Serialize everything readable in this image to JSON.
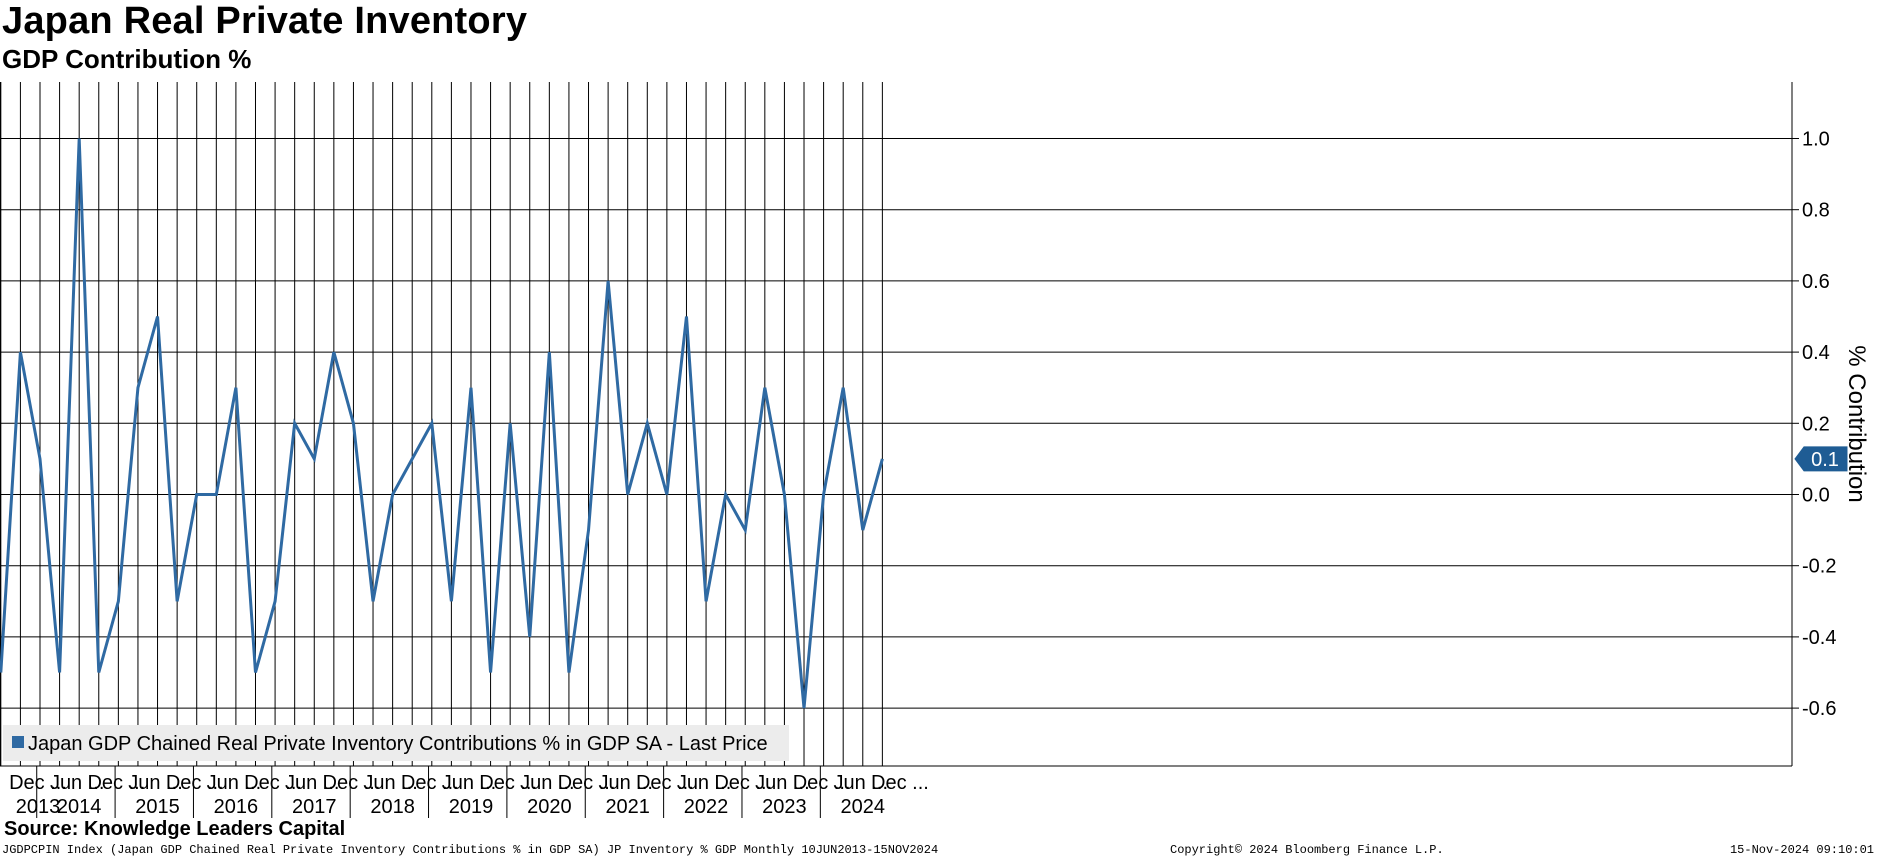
{
  "chart_data": {
    "type": "line",
    "title": "Japan Real Private Inventory",
    "subtitle": "GDP Contribution %",
    "ylabel": "% Contribution",
    "ylim": [
      -0.76,
      1.15
    ],
    "yticks": [
      "1.0",
      "0.8",
      "0.6",
      "0.4",
      "0.2",
      "0.0",
      "-0.2",
      "-0.4",
      "-0.6"
    ],
    "ytick_values": [
      1.0,
      0.8,
      0.6,
      0.4,
      0.2,
      0.0,
      -0.2,
      -0.4,
      -0.6
    ],
    "x_range": [
      "2013-04",
      "2024-10"
    ],
    "grid": true,
    "legend_position": "bottom-left",
    "series": [
      {
        "name": "Japan GDP Chained Real Private Inventory Contributions % in GDP SA - Last Price",
        "color": "#2f6aa3",
        "x": [
          "2013-06",
          "2013-09",
          "2013-12",
          "2014-03",
          "2014-06",
          "2014-09",
          "2014-12",
          "2015-03",
          "2015-06",
          "2015-09",
          "2015-12",
          "2016-03",
          "2016-06",
          "2016-09",
          "2016-12",
          "2017-03",
          "2017-06",
          "2017-09",
          "2017-12",
          "2018-03",
          "2018-06",
          "2018-09",
          "2018-12",
          "2019-03",
          "2019-06",
          "2019-09",
          "2019-12",
          "2020-03",
          "2020-06",
          "2020-09",
          "2020-12",
          "2021-03",
          "2021-06",
          "2021-09",
          "2021-12",
          "2022-03",
          "2022-06",
          "2022-09",
          "2022-12",
          "2023-03",
          "2023-06",
          "2023-09",
          "2023-12",
          "2024-03",
          "2024-06",
          "2024-09"
        ],
        "values": [
          -0.5,
          0.4,
          0.1,
          -0.5,
          1.0,
          -0.5,
          -0.3,
          0.3,
          0.5,
          -0.3,
          0.0,
          0.0,
          0.3,
          -0.5,
          -0.3,
          0.2,
          0.1,
          0.4,
          0.2,
          -0.3,
          0.0,
          0.1,
          0.2,
          -0.3,
          0.3,
          -0.5,
          0.2,
          -0.4,
          0.4,
          -0.5,
          -0.1,
          0.6,
          0.0,
          0.2,
          0.0,
          0.5,
          -0.3,
          0.0,
          -0.1,
          0.3,
          0.0,
          -0.6,
          0.0,
          0.3,
          -0.1,
          0.1
        ]
      }
    ],
    "last_value_label": "0.1",
    "x_labels": {
      "top": [
        "Dec ...",
        "Jun ...",
        "Dec ...",
        "Jun ...",
        "Dec ...",
        "Jun ...",
        "Dec ...",
        "Jun ...",
        "Dec ...",
        "Jun ...",
        "Dec ...",
        "Jun ...",
        "Dec ...",
        "Jun ...",
        "Dec ...",
        "Jun ...",
        "Dec ...",
        "Jun ...",
        "Dec ...",
        "Jun ...",
        "Dec ...",
        "Jun ...",
        "Dec ..."
      ],
      "top_dates": [
        "2013-12",
        "2014-06",
        "2014-12",
        "2015-06",
        "2015-12",
        "2016-06",
        "2016-12",
        "2017-06",
        "2017-12",
        "2018-06",
        "2018-12",
        "2019-06",
        "2019-12",
        "2020-06",
        "2020-12",
        "2021-06",
        "2021-12",
        "2022-06",
        "2022-12",
        "2023-06",
        "2023-12",
        "2024-06",
        "2024-12"
      ],
      "years": [
        "2013",
        "2014",
        "2015",
        "2016",
        "2017",
        "2018",
        "2019",
        "2020",
        "2021",
        "2022",
        "2023",
        "2024"
      ]
    }
  },
  "source": "Source: Knowledge Leaders Capital",
  "footer": {
    "left": "JGDPCPIN Index (Japan GDP Chained Real Private Inventory Contributions % in GDP SA) JP Inventory % GDP  Monthly 10JUN2013-15NOV2024",
    "copyright": "Copyright© 2024 Bloomberg Finance L.P.",
    "timestamp": "15-Nov-2024 09:10:01"
  }
}
